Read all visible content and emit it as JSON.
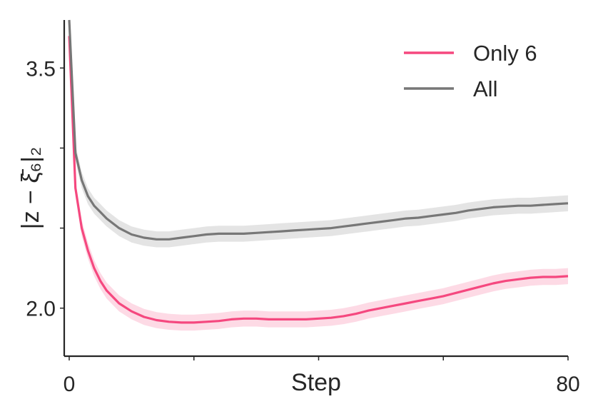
{
  "chart_data": {
    "type": "line",
    "xlabel": "Step",
    "ylabel": "|z − ξ̄₆|₂",
    "xlim": [
      -0.8,
      80
    ],
    "ylim": [
      1.7,
      3.8
    ],
    "xticks": [
      0,
      20,
      40,
      60,
      80
    ],
    "xtick_labels": [
      "0",
      "",
      "",
      "",
      "80"
    ],
    "yticks": [
      2.0,
      2.5,
      3.0,
      3.5
    ],
    "ytick_labels": [
      "2.0",
      "",
      "",
      "3.5"
    ],
    "legend_position": "top-right",
    "grid": false,
    "series": [
      {
        "name": "Only 6",
        "color": "#f5487f",
        "band": 0.05,
        "x": [
          0,
          1,
          2,
          3,
          4,
          5,
          6,
          8,
          10,
          12,
          14,
          16,
          18,
          20,
          22,
          24,
          26,
          28,
          30,
          32,
          34,
          36,
          38,
          40,
          42,
          44,
          46,
          48,
          50,
          52,
          54,
          56,
          58,
          60,
          62,
          64,
          66,
          68,
          70,
          72,
          74,
          76,
          78,
          80
        ],
        "y": [
          3.7,
          2.75,
          2.5,
          2.36,
          2.25,
          2.17,
          2.11,
          2.03,
          1.98,
          1.945,
          1.925,
          1.915,
          1.91,
          1.91,
          1.915,
          1.92,
          1.93,
          1.935,
          1.935,
          1.93,
          1.93,
          1.93,
          1.93,
          1.935,
          1.94,
          1.95,
          1.965,
          1.985,
          2.0,
          2.015,
          2.03,
          2.045,
          2.06,
          2.075,
          2.095,
          2.115,
          2.135,
          2.155,
          2.17,
          2.18,
          2.19,
          2.195,
          2.195,
          2.2
        ]
      },
      {
        "name": "All",
        "color": "#777777",
        "band": 0.05,
        "x": [
          0,
          1,
          2,
          3,
          4,
          5,
          6,
          8,
          10,
          12,
          14,
          16,
          18,
          20,
          22,
          24,
          26,
          28,
          30,
          32,
          34,
          36,
          38,
          40,
          42,
          44,
          46,
          48,
          50,
          52,
          54,
          56,
          58,
          60,
          62,
          64,
          66,
          68,
          70,
          72,
          74,
          76,
          78,
          80
        ],
        "y": [
          3.8,
          2.97,
          2.8,
          2.7,
          2.64,
          2.6,
          2.56,
          2.5,
          2.46,
          2.44,
          2.43,
          2.43,
          2.44,
          2.45,
          2.46,
          2.465,
          2.465,
          2.465,
          2.47,
          2.475,
          2.48,
          2.485,
          2.49,
          2.495,
          2.5,
          2.51,
          2.52,
          2.53,
          2.54,
          2.55,
          2.56,
          2.565,
          2.575,
          2.585,
          2.595,
          2.61,
          2.62,
          2.63,
          2.635,
          2.64,
          2.64,
          2.645,
          2.65,
          2.655
        ]
      }
    ]
  }
}
